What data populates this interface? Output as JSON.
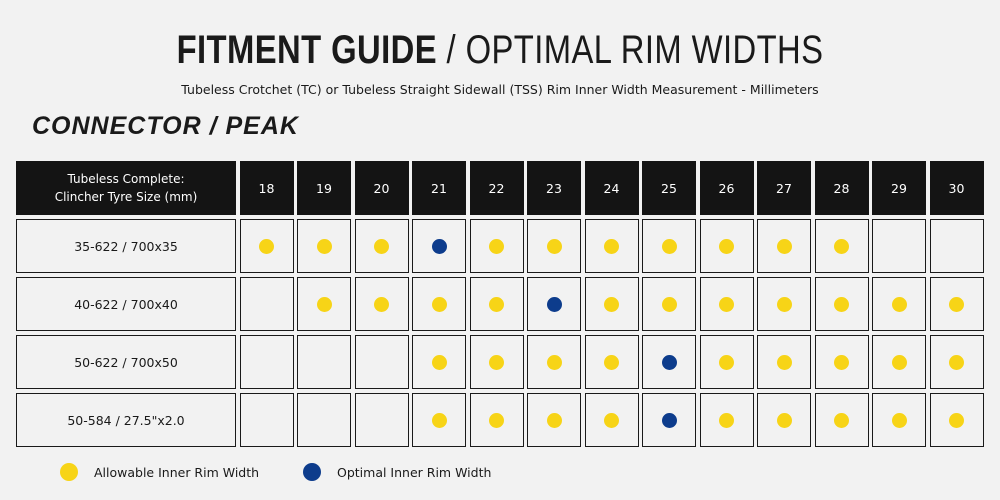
{
  "header": {
    "title_bold": "FITMENT GUIDE",
    "title_rest": " / OPTIMAL RIM WIDTHS",
    "subtitle": "Tubeless Crotchet (TC) or Tubeless Straight Sidewall (TSS) Rim Inner Width Measurement - Millimeters",
    "section": "CONNECTOR / PEAK"
  },
  "colors": {
    "allowable": "#f7d417",
    "optimal": "#0d3c8c",
    "header_bg": "#141414"
  },
  "table": {
    "corner_line1": "Tubeless Complete:",
    "corner_line2": "Clincher Tyre Size (mm)",
    "widths": [
      "18",
      "19",
      "20",
      "21",
      "22",
      "23",
      "24",
      "25",
      "26",
      "27",
      "28",
      "29",
      "30"
    ],
    "rows": [
      {
        "size": "35-622 / 700x35",
        "marks": [
          "A",
          "A",
          "A",
          "O",
          "A",
          "A",
          "A",
          "A",
          "A",
          "A",
          "A",
          "",
          ""
        ]
      },
      {
        "size": "40-622 / 700x40",
        "marks": [
          "",
          "A",
          "A",
          "A",
          "A",
          "O",
          "A",
          "A",
          "A",
          "A",
          "A",
          "A",
          "A"
        ]
      },
      {
        "size": "50-622 / 700x50",
        "marks": [
          "",
          "",
          "",
          "A",
          "A",
          "A",
          "A",
          "O",
          "A",
          "A",
          "A",
          "A",
          "A"
        ]
      },
      {
        "size": "50-584 / 27.5\"x2.0",
        "marks": [
          "",
          "",
          "",
          "A",
          "A",
          "A",
          "A",
          "O",
          "A",
          "A",
          "A",
          "A",
          "A"
        ]
      }
    ]
  },
  "legend": {
    "allowable_label": "Allowable Inner Rim Width",
    "optimal_label": "Optimal Inner Rim Width"
  }
}
